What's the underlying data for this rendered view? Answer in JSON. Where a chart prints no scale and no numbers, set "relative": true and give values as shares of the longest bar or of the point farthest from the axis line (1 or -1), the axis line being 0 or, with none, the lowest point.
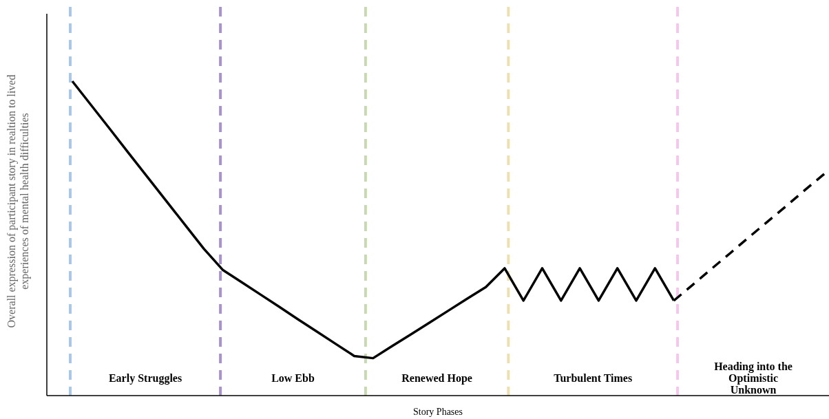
{
  "chart_data": {
    "type": "line",
    "relative": true,
    "xlabel": "Story Phases",
    "ylabel": "Overall  expression of participant story in realtion to lived experiences of mental health difficulties",
    "categories": [
      null,
      null,
      null,
      null,
      null,
      null,
      null,
      null,
      null,
      null,
      null,
      null,
      null,
      null,
      null,
      null,
      null,
      null,
      null,
      null,
      null,
      null,
      null,
      null,
      null,
      null,
      null,
      null,
      null,
      null,
      null,
      null,
      null,
      null,
      null,
      null,
      null,
      null,
      null,
      null,
      null
    ],
    "series": [
      {
        "color": "#000000",
        "line_style": "solid",
        "values": [
          1.0,
          0.924,
          0.848,
          0.771,
          0.695,
          0.619,
          0.543,
          0.467,
          0.4,
          0.361,
          0.322,
          0.283,
          0.243,
          0.204,
          0.165,
          0.126,
          0.119,
          0.157,
          0.194,
          0.232,
          0.27,
          0.308,
          0.345,
          0.405,
          0.302,
          0.405,
          0.302,
          0.405,
          0.302,
          0.405,
          0.302,
          0.405,
          0.302,
          null,
          null,
          null,
          null,
          null,
          null,
          null,
          null
        ]
      },
      {
        "color": "#000000",
        "line_style": "dashed",
        "values": [
          null,
          null,
          null,
          null,
          null,
          null,
          null,
          null,
          null,
          null,
          null,
          null,
          null,
          null,
          null,
          null,
          null,
          null,
          null,
          null,
          null,
          null,
          null,
          null,
          null,
          null,
          null,
          null,
          null,
          null,
          null,
          null,
          0.302,
          0.352,
          0.403,
          0.453,
          0.504,
          0.554,
          0.604,
          0.655,
          0.705
        ]
      }
    ],
    "annotations": [
      "Early Struggles",
      "Low Ebb",
      "Renewed Hope",
      "Turbulent Times",
      "Heading into the Optimistic Unknown"
    ]
  }
}
